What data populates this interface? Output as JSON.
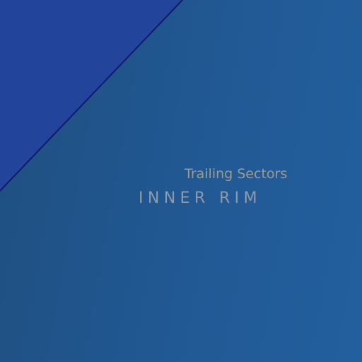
{
  "labels": {
    "subtitle": "Trailing Sectors",
    "title": "INNER RIM"
  },
  "colors": {
    "background": "#215994",
    "corner_panel": "#22449a",
    "divider_line": "#0f1a6e",
    "subtitle_text": "#9c9b8e",
    "title_text": "#8e9aa8"
  }
}
